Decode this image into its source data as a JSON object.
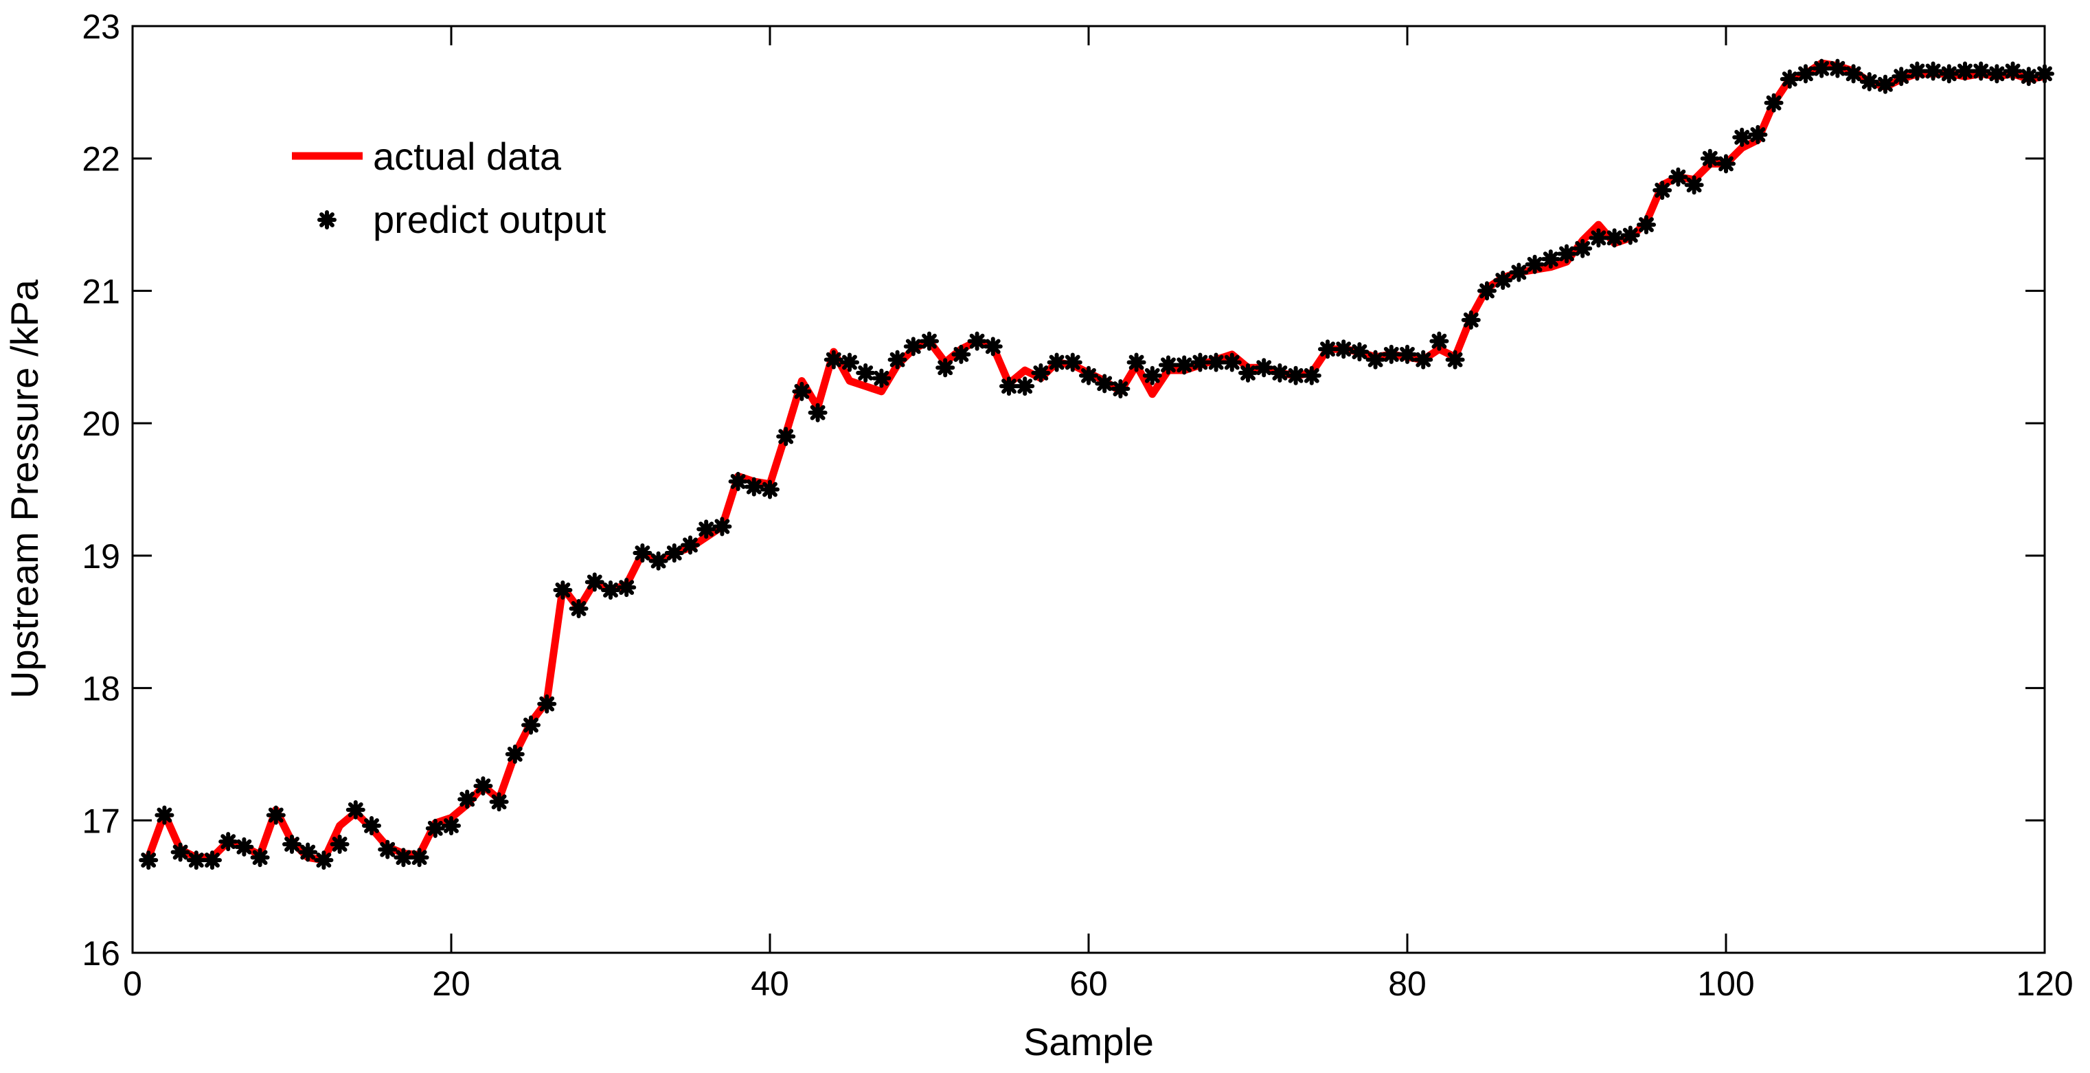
{
  "chart_data": {
    "type": "line",
    "title": "",
    "xlabel": "Sample",
    "ylabel": "Upstream Pressure /kPa",
    "xlim": [
      0,
      120
    ],
    "ylim": [
      16,
      23
    ],
    "x_ticks": [
      0,
      20,
      40,
      60,
      80,
      100,
      120
    ],
    "y_ticks": [
      16,
      17,
      18,
      19,
      20,
      21,
      22,
      23
    ],
    "grid": false,
    "legend_position": "top-left",
    "x": [
      1,
      2,
      3,
      4,
      5,
      6,
      7,
      8,
      9,
      10,
      11,
      12,
      13,
      14,
      15,
      16,
      17,
      18,
      19,
      20,
      21,
      22,
      23,
      24,
      25,
      26,
      27,
      28,
      29,
      30,
      31,
      32,
      33,
      34,
      35,
      36,
      37,
      38,
      39,
      40,
      41,
      42,
      43,
      44,
      45,
      46,
      47,
      48,
      49,
      50,
      51,
      52,
      53,
      54,
      55,
      56,
      57,
      58,
      59,
      60,
      61,
      62,
      63,
      64,
      65,
      66,
      67,
      68,
      69,
      70,
      71,
      72,
      73,
      74,
      75,
      76,
      77,
      78,
      79,
      80,
      81,
      82,
      83,
      84,
      85,
      86,
      87,
      88,
      89,
      90,
      91,
      92,
      93,
      94,
      95,
      96,
      97,
      98,
      99,
      100,
      101,
      102,
      103,
      104,
      105,
      106,
      107,
      108,
      109,
      110,
      111,
      112,
      113,
      114,
      115,
      116,
      117,
      118,
      119,
      120
    ],
    "series": [
      {
        "name": "actual data",
        "style": "line",
        "color": "#ff0000",
        "values": [
          16.72,
          17.05,
          16.78,
          16.72,
          16.72,
          16.84,
          16.8,
          16.74,
          17.08,
          16.84,
          16.72,
          16.7,
          16.96,
          17.06,
          16.94,
          16.8,
          16.75,
          16.74,
          16.98,
          17.02,
          17.12,
          17.26,
          17.16,
          17.5,
          17.74,
          17.9,
          18.76,
          18.6,
          18.8,
          18.74,
          18.78,
          19.02,
          18.96,
          19.02,
          19.06,
          19.14,
          19.22,
          19.6,
          19.56,
          19.54,
          19.92,
          20.32,
          20.12,
          20.54,
          20.32,
          20.28,
          20.24,
          20.44,
          20.56,
          20.62,
          20.46,
          20.56,
          20.62,
          20.58,
          20.3,
          20.4,
          20.34,
          20.46,
          20.44,
          20.38,
          20.32,
          20.24,
          20.44,
          20.22,
          20.4,
          20.4,
          20.44,
          20.48,
          20.52,
          20.42,
          20.42,
          20.38,
          20.36,
          20.38,
          20.56,
          20.56,
          20.54,
          20.5,
          20.52,
          20.5,
          20.48,
          20.56,
          20.5,
          20.8,
          21.02,
          21.1,
          21.14,
          21.16,
          21.18,
          21.22,
          21.38,
          21.5,
          21.36,
          21.4,
          21.52,
          21.8,
          21.86,
          21.84,
          21.96,
          21.96,
          22.08,
          22.14,
          22.42,
          22.6,
          22.64,
          22.72,
          22.7,
          22.66,
          22.58,
          22.54,
          22.6,
          22.64,
          22.64,
          22.64,
          22.62,
          22.64,
          22.62,
          22.64,
          22.6,
          22.62
        ]
      },
      {
        "name": "predict output",
        "style": "marker",
        "color": "#000000",
        "values": [
          16.7,
          17.04,
          16.76,
          16.7,
          16.7,
          16.84,
          16.8,
          16.72,
          17.04,
          16.82,
          16.76,
          16.7,
          16.82,
          17.08,
          16.96,
          16.78,
          16.72,
          16.72,
          16.94,
          16.96,
          17.16,
          17.26,
          17.14,
          17.5,
          17.72,
          17.88,
          18.74,
          18.6,
          18.8,
          18.74,
          18.76,
          19.02,
          18.96,
          19.02,
          19.08,
          19.2,
          19.22,
          19.56,
          19.52,
          19.5,
          19.9,
          20.24,
          20.08,
          20.48,
          20.46,
          20.38,
          20.34,
          20.48,
          20.58,
          20.62,
          20.42,
          20.52,
          20.62,
          20.58,
          20.28,
          20.28,
          20.38,
          20.46,
          20.46,
          20.36,
          20.3,
          20.26,
          20.46,
          20.36,
          20.44,
          20.44,
          20.46,
          20.46,
          20.46,
          20.38,
          20.42,
          20.38,
          20.36,
          20.36,
          20.56,
          20.56,
          20.54,
          20.48,
          20.52,
          20.52,
          20.48,
          20.62,
          20.48,
          20.78,
          21.0,
          21.08,
          21.14,
          21.2,
          21.24,
          21.28,
          21.32,
          21.4,
          21.4,
          21.42,
          21.5,
          21.76,
          21.86,
          21.8,
          22.0,
          21.96,
          22.16,
          22.18,
          22.42,
          22.6,
          22.64,
          22.68,
          22.68,
          22.64,
          22.58,
          22.56,
          22.62,
          22.66,
          22.66,
          22.64,
          22.66,
          22.66,
          22.64,
          22.66,
          22.62,
          22.64
        ]
      }
    ]
  }
}
